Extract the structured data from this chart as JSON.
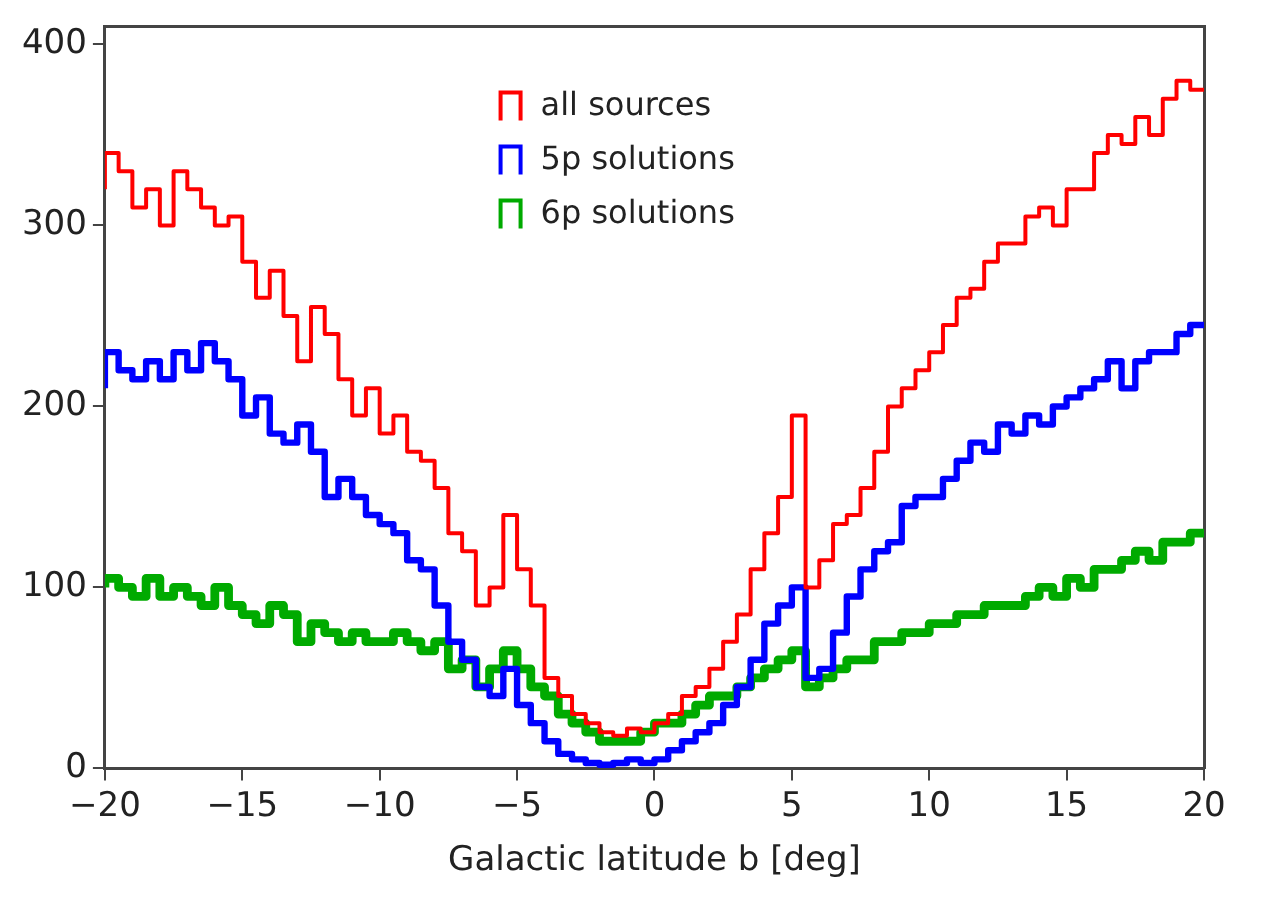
{
  "chart_data": {
    "type": "step",
    "xlabel": "Galactic latitude b [deg]",
    "x": [
      -20,
      -19.5,
      -19,
      -18.5,
      -18,
      -17.5,
      -17,
      -16.5,
      -16,
      -15.5,
      -15,
      -14.5,
      -14,
      -13.5,
      -13,
      -12.5,
      -12,
      -11.5,
      -11,
      -10.5,
      -10,
      -9.5,
      -9,
      -8.5,
      -8,
      -7.5,
      -7,
      -6.5,
      -6,
      -5.5,
      -5,
      -4.5,
      -4,
      -3.5,
      -3,
      -2.5,
      -2,
      -1.5,
      -1,
      -0.5,
      0,
      0.5,
      1,
      1.5,
      2,
      2.5,
      3,
      3.5,
      4,
      4.5,
      5,
      5.5,
      6,
      6.5,
      7,
      7.5,
      8,
      8.5,
      9,
      9.5,
      10,
      10.5,
      11,
      11.5,
      12,
      12.5,
      13,
      13.5,
      14,
      14.5,
      15,
      15.5,
      16,
      16.5,
      17,
      17.5,
      18,
      18.5,
      19,
      19.5,
      20
    ],
    "series": [
      {
        "name": "all sources",
        "color": "#ff0000",
        "values": [
          320,
          340,
          330,
          310,
          320,
          300,
          330,
          320,
          310,
          300,
          305,
          280,
          260,
          275,
          250,
          225,
          255,
          240,
          215,
          195,
          210,
          185,
          195,
          175,
          170,
          155,
          130,
          120,
          90,
          100,
          140,
          110,
          90,
          50,
          40,
          30,
          25,
          20,
          18,
          22,
          20,
          25,
          30,
          40,
          45,
          55,
          70,
          85,
          110,
          130,
          150,
          195,
          100,
          115,
          135,
          140,
          155,
          175,
          200,
          210,
          220,
          230,
          245,
          260,
          265,
          280,
          290,
          290,
          305,
          310,
          300,
          320,
          320,
          340,
          350,
          345,
          360,
          350,
          370,
          380,
          375
        ]
      },
      {
        "name": "5p solutions",
        "color": "#0000ff",
        "values": [
          210,
          230,
          220,
          215,
          225,
          215,
          230,
          220,
          235,
          225,
          215,
          195,
          205,
          185,
          180,
          190,
          175,
          150,
          160,
          150,
          140,
          135,
          130,
          115,
          110,
          90,
          70,
          60,
          45,
          40,
          55,
          35,
          25,
          15,
          8,
          5,
          3,
          2,
          3,
          5,
          3,
          5,
          10,
          15,
          20,
          25,
          35,
          45,
          60,
          80,
          90,
          100,
          50,
          55,
          75,
          95,
          110,
          120,
          125,
          145,
          150,
          150,
          160,
          170,
          180,
          175,
          190,
          185,
          195,
          190,
          200,
          205,
          210,
          215,
          225,
          210,
          225,
          230,
          230,
          240,
          245
        ]
      },
      {
        "name": "6p solutions",
        "color": "#00aa00",
        "values": [
          100,
          105,
          100,
          95,
          105,
          95,
          100,
          95,
          90,
          100,
          90,
          85,
          80,
          90,
          85,
          70,
          80,
          75,
          70,
          75,
          70,
          70,
          75,
          70,
          65,
          70,
          55,
          60,
          45,
          55,
          65,
          55,
          45,
          40,
          30,
          25,
          20,
          15,
          15,
          15,
          20,
          25,
          25,
          30,
          35,
          40,
          40,
          45,
          50,
          55,
          60,
          65,
          45,
          50,
          55,
          60,
          60,
          70,
          70,
          75,
          75,
          80,
          80,
          85,
          85,
          90,
          90,
          90,
          95,
          100,
          95,
          105,
          100,
          110,
          110,
          115,
          120,
          115,
          125,
          125,
          130
        ]
      }
    ],
    "xlim": [
      -20,
      20
    ],
    "xticks": [
      {
        "value": -20,
        "label": "−20"
      },
      {
        "value": -15,
        "label": "−15"
      },
      {
        "value": -10,
        "label": "−10"
      },
      {
        "value": -5,
        "label": "−5"
      },
      0,
      5,
      10,
      15,
      20
    ],
    "ylim": [
      0,
      410
    ],
    "yticks": [
      0,
      100,
      200,
      300,
      400
    ],
    "grid": false,
    "legend": "top"
  }
}
